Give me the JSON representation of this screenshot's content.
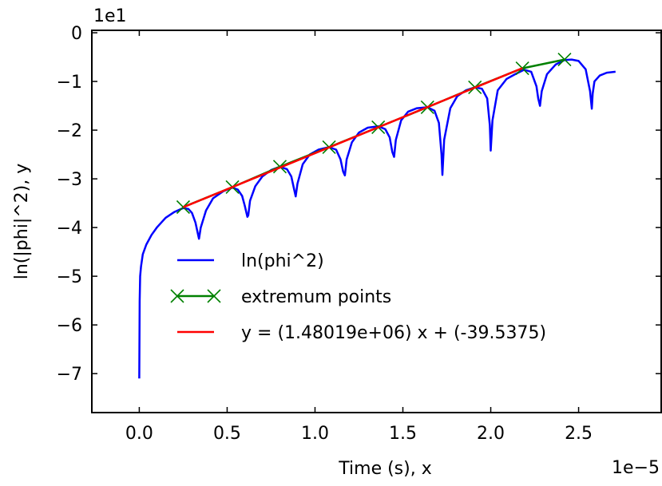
{
  "chart_data": {
    "type": "line",
    "title": "",
    "xlabel": "Time (s), x",
    "ylabel": "ln(|phi|^2), y",
    "x_multiplier_label": "1e−5",
    "y_multiplier_label": "1e1",
    "x_scale": 1e-05,
    "y_scale": 10,
    "xlim": [
      -0.27,
      2.97
    ],
    "ylim": [
      -7.8,
      0.05
    ],
    "x_ticks": [
      0.0,
      0.5,
      1.0,
      1.5,
      2.0,
      2.5
    ],
    "x_tick_labels": [
      "0.0",
      "0.5",
      "1.0",
      "1.5",
      "2.0",
      "2.5"
    ],
    "y_ticks": [
      0,
      -1,
      -2,
      -3,
      -4,
      -5,
      -6,
      -7
    ],
    "y_tick_labels": [
      "0",
      "−1",
      "−2",
      "−3",
      "−4",
      "−5",
      "−6",
      "−7"
    ],
    "grid": false,
    "legend_position": "lower-center",
    "series": [
      {
        "name": "ln(phi^2)",
        "color": "#0000ff",
        "style": "line",
        "x": [
          0.0,
          0.002,
          0.005,
          0.01,
          0.02,
          0.04,
          0.07,
          0.1,
          0.15,
          0.2,
          0.25,
          0.28,
          0.3,
          0.32,
          0.335,
          0.34,
          0.35,
          0.38,
          0.42,
          0.48,
          0.53,
          0.56,
          0.585,
          0.6,
          0.615,
          0.62,
          0.63,
          0.66,
          0.7,
          0.75,
          0.8,
          0.84,
          0.865,
          0.88,
          0.89,
          0.9,
          0.93,
          0.97,
          1.02,
          1.08,
          1.12,
          1.145,
          1.16,
          1.17,
          1.18,
          1.21,
          1.25,
          1.3,
          1.36,
          1.4,
          1.425,
          1.44,
          1.45,
          1.46,
          1.49,
          1.53,
          1.58,
          1.64,
          1.68,
          1.705,
          1.72,
          1.725,
          1.735,
          1.77,
          1.81,
          1.86,
          1.91,
          1.95,
          1.98,
          1.995,
          2.0,
          2.01,
          2.04,
          2.09,
          2.14,
          2.19,
          2.23,
          2.26,
          2.27,
          2.28,
          2.29,
          2.32,
          2.37,
          2.42,
          2.46,
          2.5,
          2.54,
          2.565,
          2.575,
          2.58,
          2.59,
          2.62,
          2.66,
          2.71
        ],
        "y": [
          -7.1,
          -5.5,
          -5.0,
          -4.8,
          -4.55,
          -4.35,
          -4.15,
          -4.0,
          -3.8,
          -3.68,
          -3.6,
          -3.62,
          -3.7,
          -3.9,
          -4.15,
          -4.23,
          -4.0,
          -3.65,
          -3.4,
          -3.25,
          -3.18,
          -3.22,
          -3.35,
          -3.55,
          -3.78,
          -3.75,
          -3.45,
          -3.15,
          -2.95,
          -2.82,
          -2.75,
          -2.8,
          -2.95,
          -3.2,
          -3.36,
          -3.1,
          -2.7,
          -2.5,
          -2.4,
          -2.35,
          -2.4,
          -2.6,
          -2.85,
          -2.93,
          -2.6,
          -2.25,
          -2.05,
          -1.95,
          -1.92,
          -1.98,
          -2.15,
          -2.45,
          -2.55,
          -2.2,
          -1.8,
          -1.62,
          -1.55,
          -1.53,
          -1.6,
          -1.85,
          -2.5,
          -2.92,
          -2.2,
          -1.55,
          -1.3,
          -1.18,
          -1.12,
          -1.15,
          -1.35,
          -1.9,
          -2.42,
          -1.8,
          -1.18,
          -0.95,
          -0.85,
          -0.76,
          -0.8,
          -1.1,
          -1.35,
          -1.5,
          -1.2,
          -0.85,
          -0.65,
          -0.56,
          -0.55,
          -0.58,
          -0.75,
          -1.2,
          -1.56,
          -1.25,
          -1.0,
          -0.88,
          -0.82,
          -0.8
        ]
      },
      {
        "name": "extremum points",
        "color": "#008000",
        "style": "line+x-markers",
        "x": [
          0.25,
          0.53,
          0.8,
          1.08,
          1.36,
          1.64,
          1.91,
          2.18,
          2.42
        ],
        "y": [
          -3.58,
          -3.17,
          -2.75,
          -2.35,
          -1.94,
          -1.53,
          -1.12,
          -0.73,
          -0.55
        ]
      },
      {
        "name": "y = (1.48019e+06) x + (-39.5375)",
        "color": "#ff0000",
        "style": "line",
        "x": [
          0.25,
          2.18
        ],
        "y": [
          -3.583,
          -0.727
        ]
      }
    ]
  }
}
